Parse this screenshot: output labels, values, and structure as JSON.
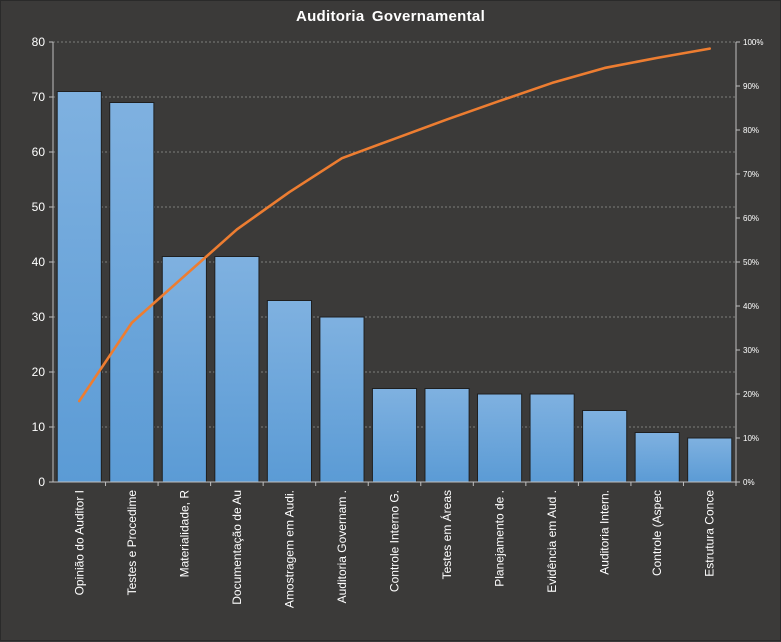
{
  "chart_data": {
    "type": "bar",
    "title": "Auditoria  Governamental",
    "categories": [
      "Opinião do Auditor I",
      "Testes e Procedime",
      "Materialidade, R",
      "Documentação de Au",
      "Amostragem em Audi.",
      "Auditoria Governam .",
      "Controle Interno G.",
      "Testes em Áreas",
      "Planejamento de .",
      "Evidência em Aud .",
      "Auditoria Intern.",
      "Controle (Aspec",
      "Estrutura Conce"
    ],
    "series": [
      {
        "values": [
          71,
          69,
          41,
          41,
          33,
          30,
          17,
          17,
          16,
          16,
          13,
          9,
          8
        ]
      },
      {
        "values": [
          18.4,
          36.2,
          46.8,
          57.4,
          65.9,
          73.6,
          78.0,
          82.4,
          86.6,
          90.7,
          94.1,
          96.4,
          98.5
        ]
      }
    ],
    "ylim": [
      0,
      80
    ],
    "y_ticks": [
      "0",
      "10",
      "20",
      "30",
      "40",
      "50",
      "60",
      "70",
      "80"
    ],
    "y2lim": [
      0,
      100
    ],
    "y2_ticks": [
      "0%",
      "10%",
      "20%",
      "30%",
      "40%",
      "50%",
      "60%",
      "70%",
      "80%",
      "90%",
      "100%"
    ],
    "grid": true,
    "colors": {
      "bar": "#5b9bd5",
      "bar_top": "#7fb1e0",
      "line": "#ed7d31",
      "background": "#3b3a39",
      "grid": "#bfbfbf"
    }
  }
}
